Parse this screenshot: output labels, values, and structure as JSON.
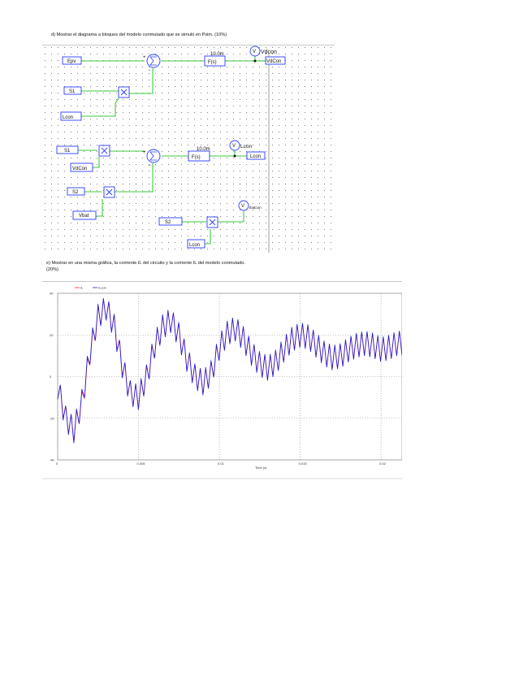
{
  "section_d": {
    "text": "d) Mostrar el diagrama a bloques del modelo conmutado que se simuló en Psim. (10%)"
  },
  "schematic": {
    "inputs": [
      "Epv",
      "S1",
      "Lcon",
      "S1",
      "VdCon",
      "S2",
      "Vbat",
      "S2",
      "Lcon"
    ],
    "gain_labels": [
      "10.0m",
      "10.0m"
    ],
    "block_label": "F(s)",
    "voltmeter_symbol": "V",
    "voltmeters": [
      "Vdcon",
      "Lcon",
      "Ibatcon"
    ],
    "outputs": [
      "VdCon",
      "Lcon"
    ]
  },
  "section_e": {
    "line1": "e) Mostrar en una misma gráfica, la corriente IL del circuito y la corriente IL del modelo conmutado.",
    "line2": "(20%)"
  },
  "chart_data": {
    "type": "line",
    "title": "",
    "xlabel": "Time (s)",
    "ylabel": "",
    "legend": "top-left",
    "x_ticks": [
      "0",
      "0.005",
      "0.01",
      "0.015",
      "0.02"
    ],
    "y_ticks": [
      "40",
      "20",
      "0",
      "-20",
      "-40"
    ],
    "xlim": [
      0,
      0.0213
    ],
    "ylim": [
      -40,
      40
    ],
    "grid": true,
    "series": [
      {
        "name": "IL",
        "color": "#e8202a"
      },
      {
        "name": "ILcon",
        "color": "#1c1cd8"
      }
    ],
    "ripple_cycles": 64,
    "envelope": {
      "x": [
        0,
        0.0005,
        0.001,
        0.0015,
        0.002,
        0.0025,
        0.003,
        0.0035,
        0.004,
        0.0045,
        0.005,
        0.0055,
        0.006,
        0.0065,
        0.007,
        0.0075,
        0.008,
        0.0085,
        0.009,
        0.0095,
        0.01,
        0.0105,
        0.011,
        0.0115,
        0.012,
        0.0125,
        0.013,
        0.0135,
        0.014,
        0.0145,
        0.015,
        0.0155,
        0.016,
        0.0165,
        0.017,
        0.0175,
        0.018,
        0.0185,
        0.019,
        0.0195,
        0.02,
        0.0205,
        0.021
      ],
      "y": [
        -5,
        -20,
        -26,
        -12,
        12,
        29,
        33,
        24,
        5,
        -8,
        -10,
        0,
        15,
        24,
        27,
        20,
        8,
        0,
        -3,
        2,
        14,
        21,
        23,
        18,
        11,
        6,
        4,
        7,
        13,
        18,
        20,
        19,
        15,
        11,
        9,
        10,
        13,
        15,
        16,
        15,
        13,
        14,
        16
      ]
    },
    "ripple_amplitude": 6
  }
}
